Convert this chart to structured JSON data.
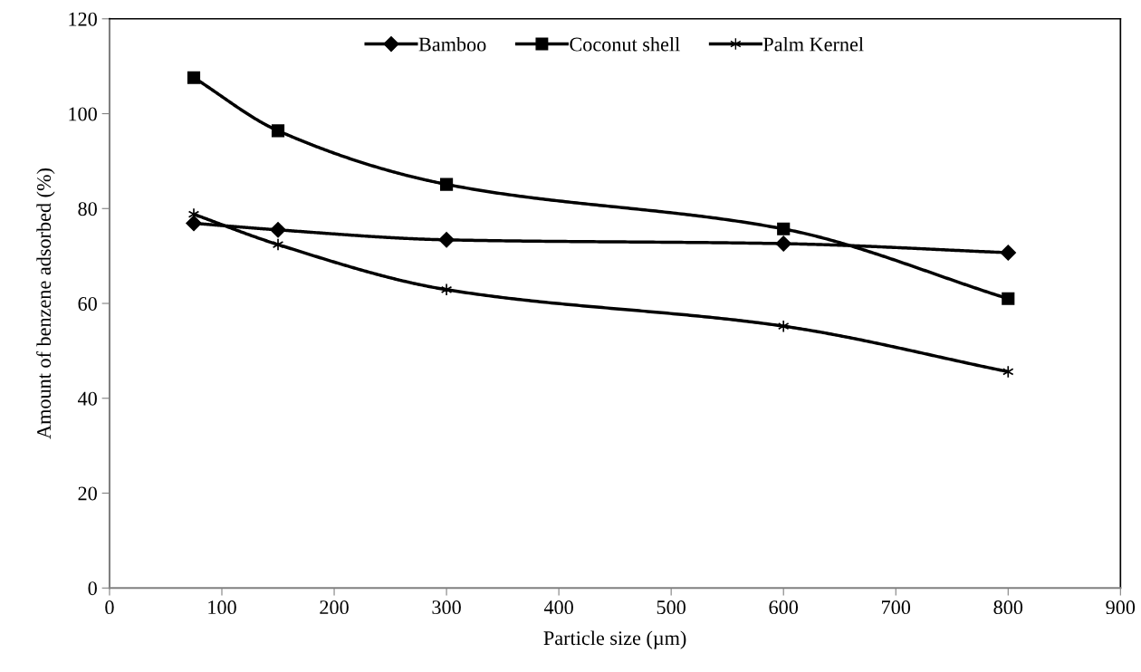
{
  "chart_data": {
    "type": "line",
    "xlabel": "Particle size (µm)",
    "ylabel": "Amount of benzene adsorbed (%)",
    "x": [
      75,
      150,
      300,
      600,
      800
    ],
    "series": [
      {
        "name": "Bamboo",
        "color": "#000000",
        "marker": "diamond",
        "values": [
          76.9,
          75.5,
          73.4,
          72.6,
          70.7
        ]
      },
      {
        "name": "Coconut shell",
        "color": "#000000",
        "marker": "square",
        "values": [
          107.6,
          96.4,
          85.1,
          75.7,
          61.0
        ]
      },
      {
        "name": "Palm Kernel",
        "color": "#000000",
        "marker": "cross",
        "values": [
          78.8,
          72.4,
          62.9,
          55.2,
          45.6
        ]
      }
    ],
    "xlim": [
      0,
      900
    ],
    "xticks": [
      0,
      100,
      200,
      300,
      400,
      500,
      600,
      700,
      800,
      900
    ],
    "ylim": [
      0,
      120
    ],
    "yticks": [
      0,
      20,
      40,
      60,
      80,
      100,
      120
    ],
    "grid": false,
    "legend": "top",
    "line_style": "solid"
  }
}
